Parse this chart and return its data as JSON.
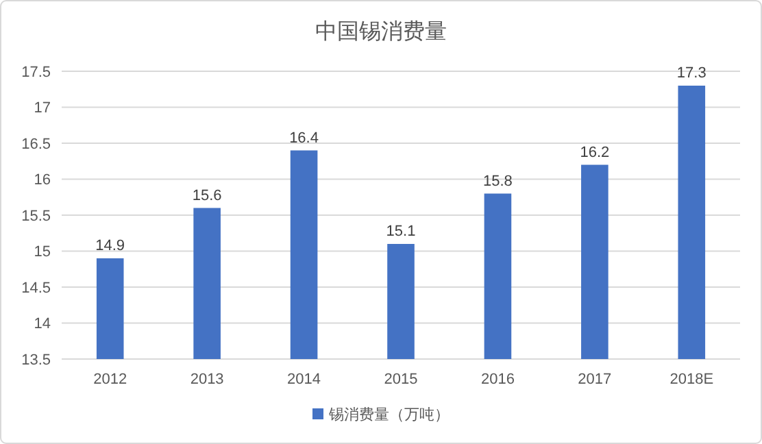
{
  "chart_data": {
    "type": "bar",
    "title": "中国锡消费量",
    "categories": [
      "2012",
      "2013",
      "2014",
      "2015",
      "2016",
      "2017",
      "2018E"
    ],
    "series": [
      {
        "name": "锡消费量（万吨）",
        "color": "#4472c4",
        "values": [
          14.9,
          15.6,
          16.4,
          15.1,
          15.8,
          16.2,
          17.3
        ]
      }
    ],
    "ylim": [
      13.5,
      17.5
    ],
    "yticks": [
      13.5,
      14,
      14.5,
      15,
      15.5,
      16,
      16.5,
      17,
      17.5
    ],
    "grid": "y",
    "legend": "bottom",
    "data_labels": true
  }
}
